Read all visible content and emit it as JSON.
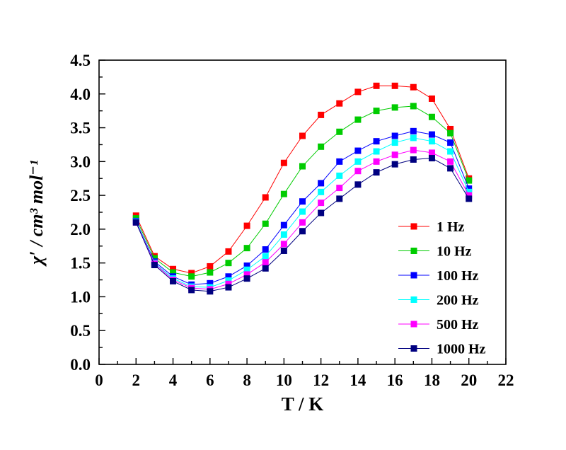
{
  "figure": {
    "background": "#ffffff"
  },
  "chart_data": {
    "type": "line",
    "title": "",
    "xlabel": "T / K",
    "ylabel": "χ′ / cm³ mol⁻¹",
    "xlim": [
      0,
      22
    ],
    "ylim": [
      0,
      4.5
    ],
    "x_tick_step": 2,
    "x_minor_step": 1,
    "y_tick_step": 0.5,
    "y_minor_step": 0.25,
    "x_tick_labels": [
      "0",
      "2",
      "4",
      "6",
      "8",
      "10",
      "12",
      "14",
      "16",
      "18",
      "20",
      "22"
    ],
    "y_tick_labels": [
      "0.0",
      "0.5",
      "1.0",
      "1.5",
      "2.0",
      "2.5",
      "3.0",
      "3.5",
      "4.0",
      "4.5"
    ],
    "grid": false,
    "marker": "square",
    "legend_position": "inside-right-lower",
    "x": [
      2,
      3,
      4,
      5,
      6,
      7,
      8,
      9,
      10,
      11,
      12,
      13,
      14,
      15,
      16,
      17,
      18,
      19,
      20
    ],
    "series": [
      {
        "name": "1 Hz",
        "color": "#ff0000",
        "values": [
          2.2,
          1.6,
          1.41,
          1.35,
          1.45,
          1.67,
          2.05,
          2.47,
          2.98,
          3.38,
          3.69,
          3.86,
          4.03,
          4.12,
          4.12,
          4.1,
          3.93,
          3.48,
          2.75
        ]
      },
      {
        "name": "10 Hz",
        "color": "#00cc00",
        "values": [
          2.16,
          1.57,
          1.36,
          1.3,
          1.36,
          1.5,
          1.72,
          2.08,
          2.52,
          2.93,
          3.22,
          3.44,
          3.62,
          3.75,
          3.8,
          3.82,
          3.66,
          3.42,
          2.72
        ]
      },
      {
        "name": "100 Hz",
        "color": "#0000ff",
        "values": [
          2.12,
          1.52,
          1.3,
          1.18,
          1.2,
          1.3,
          1.46,
          1.7,
          2.06,
          2.41,
          2.68,
          3.0,
          3.16,
          3.3,
          3.38,
          3.45,
          3.4,
          3.28,
          2.6
        ]
      },
      {
        "name": "200 Hz",
        "color": "#00ffff",
        "values": [
          2.11,
          1.5,
          1.27,
          1.15,
          1.14,
          1.24,
          1.4,
          1.6,
          1.92,
          2.26,
          2.55,
          2.79,
          3.0,
          3.15,
          3.28,
          3.35,
          3.3,
          3.15,
          2.55
        ]
      },
      {
        "name": "500 Hz",
        "color": "#ff00ff",
        "values": [
          2.1,
          1.49,
          1.25,
          1.13,
          1.11,
          1.19,
          1.33,
          1.51,
          1.78,
          2.1,
          2.39,
          2.61,
          2.86,
          3.0,
          3.1,
          3.17,
          3.13,
          3.0,
          2.5
        ]
      },
      {
        "name": "1000 Hz",
        "color": "#000080",
        "values": [
          2.1,
          1.47,
          1.23,
          1.1,
          1.08,
          1.14,
          1.27,
          1.42,
          1.68,
          1.97,
          2.24,
          2.45,
          2.66,
          2.84,
          2.96,
          3.03,
          3.05,
          2.9,
          2.45
        ]
      }
    ]
  }
}
